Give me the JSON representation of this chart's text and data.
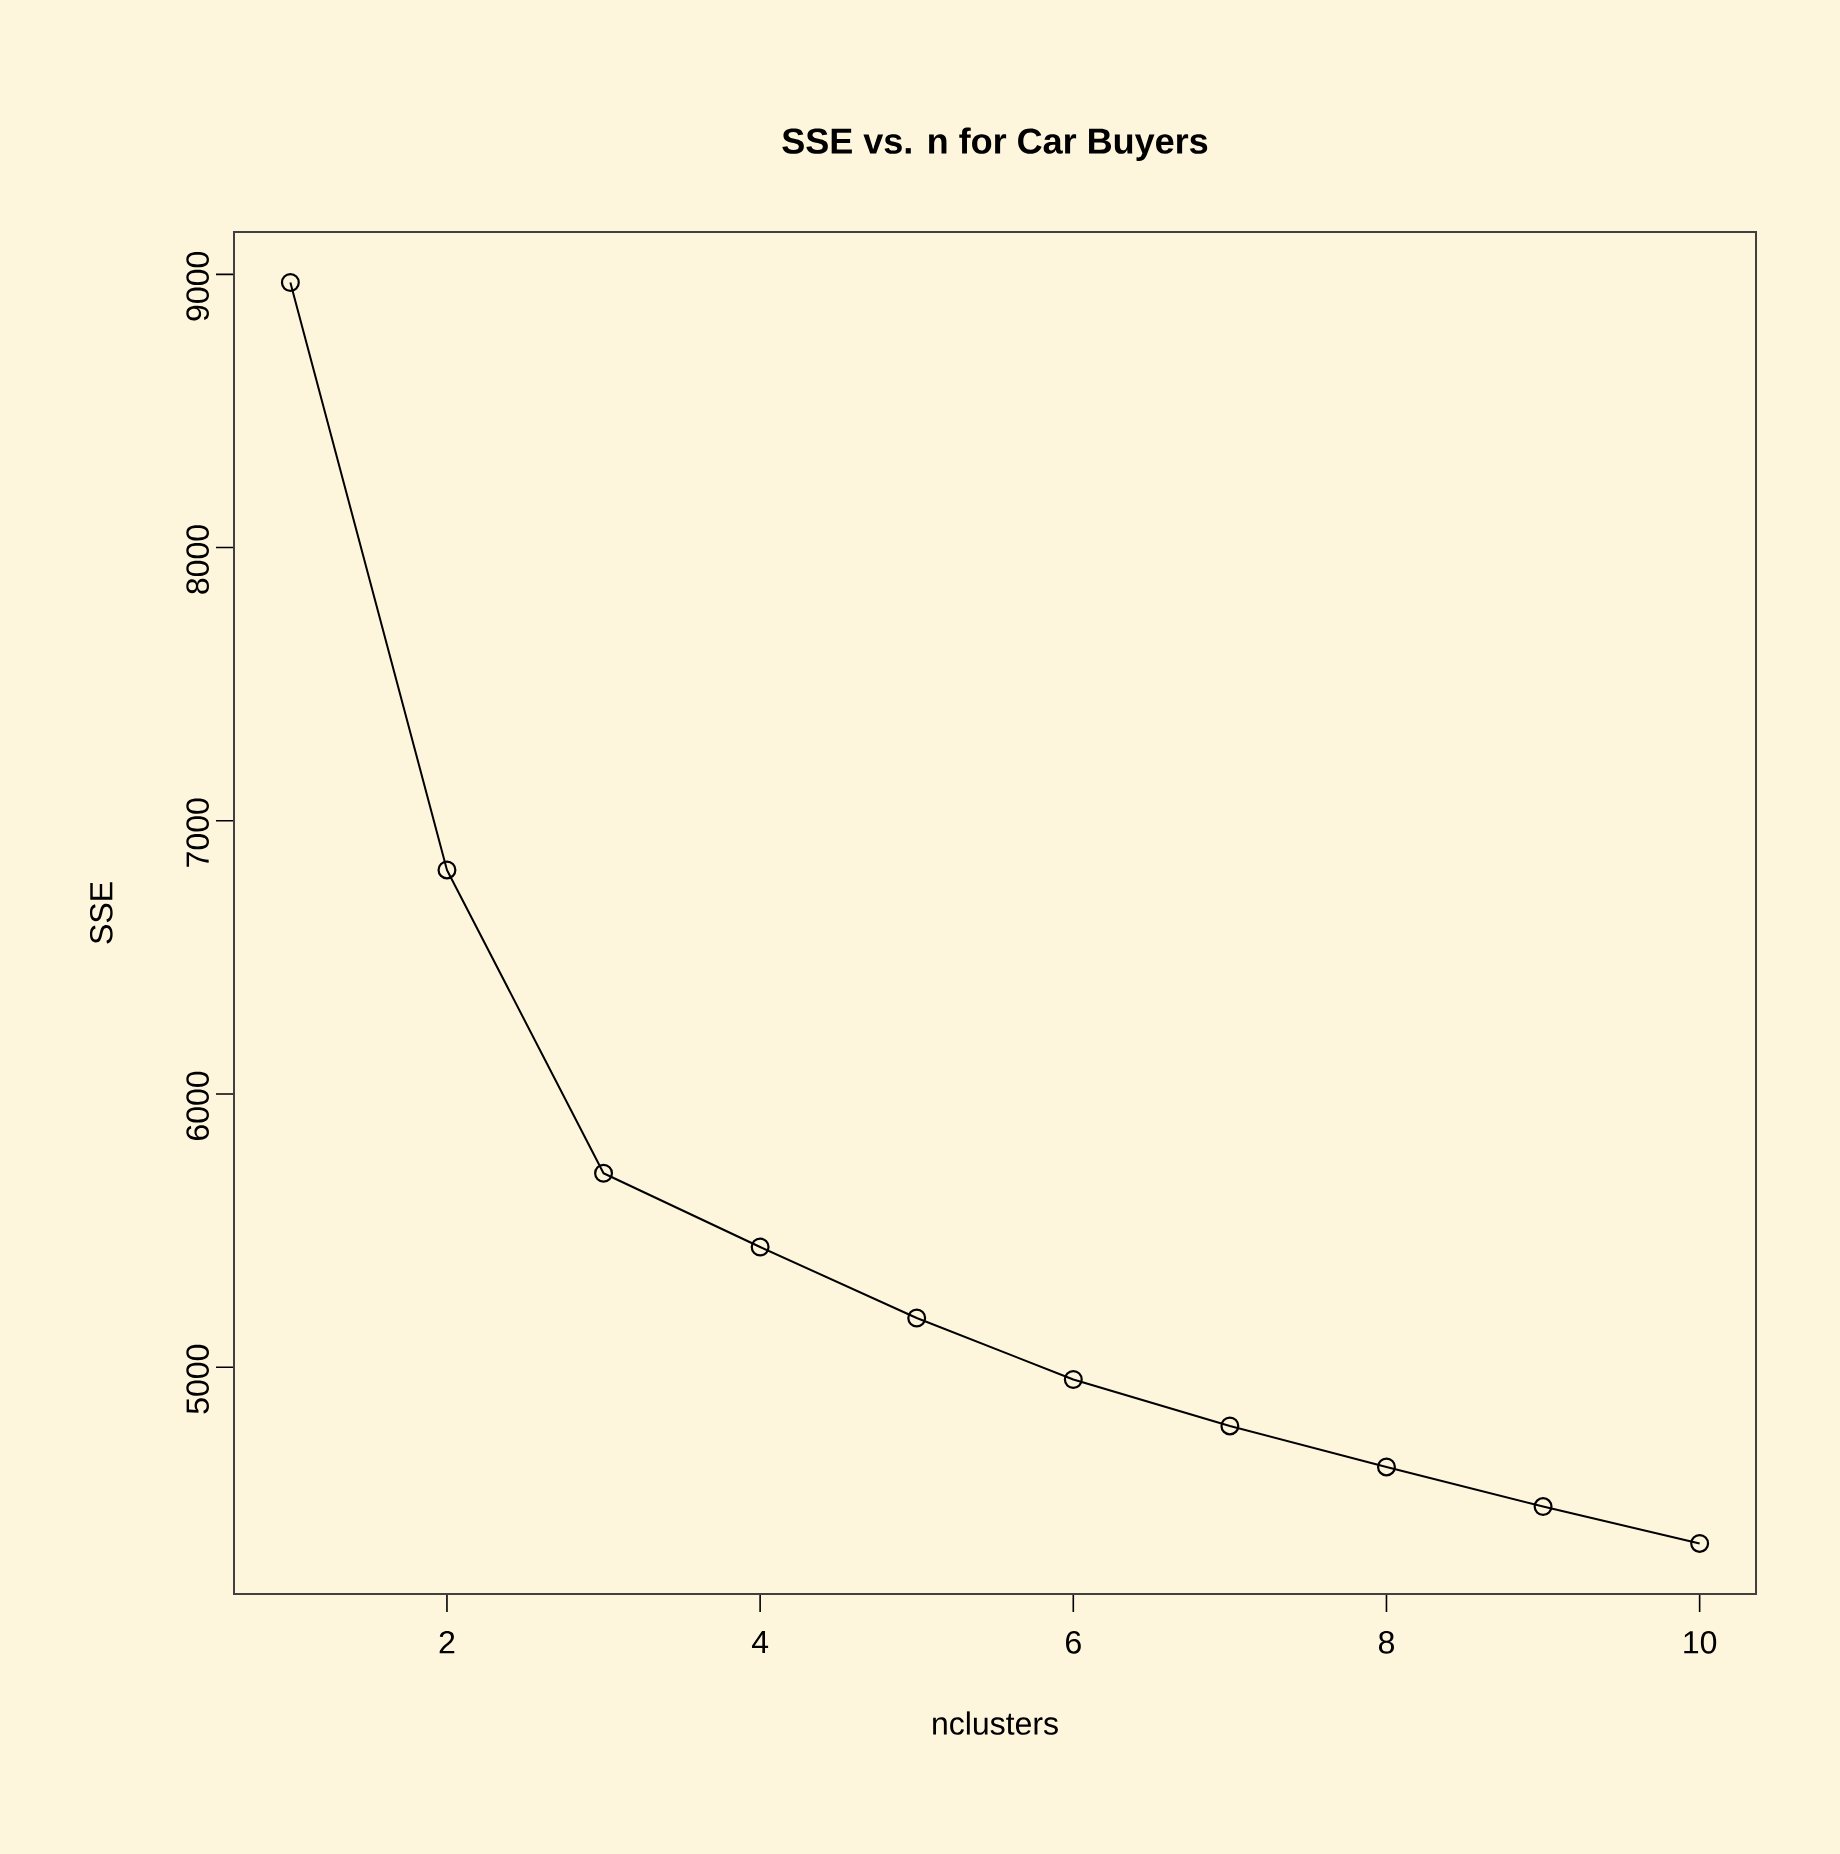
{
  "chart_data": {
    "type": "line",
    "title": "SSE vs. n for Car Buyers",
    "xlabel": "nclusters",
    "ylabel": "SSE",
    "x": [
      1,
      2,
      3,
      4,
      5,
      6,
      7,
      8,
      9,
      10
    ],
    "values": [
      8970,
      6820,
      5710,
      5440,
      5180,
      4955,
      4785,
      4635,
      4490,
      4355
    ],
    "color": "#000000",
    "marker": "circle",
    "xlim": [
      0.64,
      10.36
    ],
    "ylim": [
      4170,
      9155
    ],
    "xticks": [
      2,
      4,
      6,
      8,
      10
    ],
    "yticks": [
      5000,
      6000,
      7000,
      8000,
      9000
    ]
  }
}
